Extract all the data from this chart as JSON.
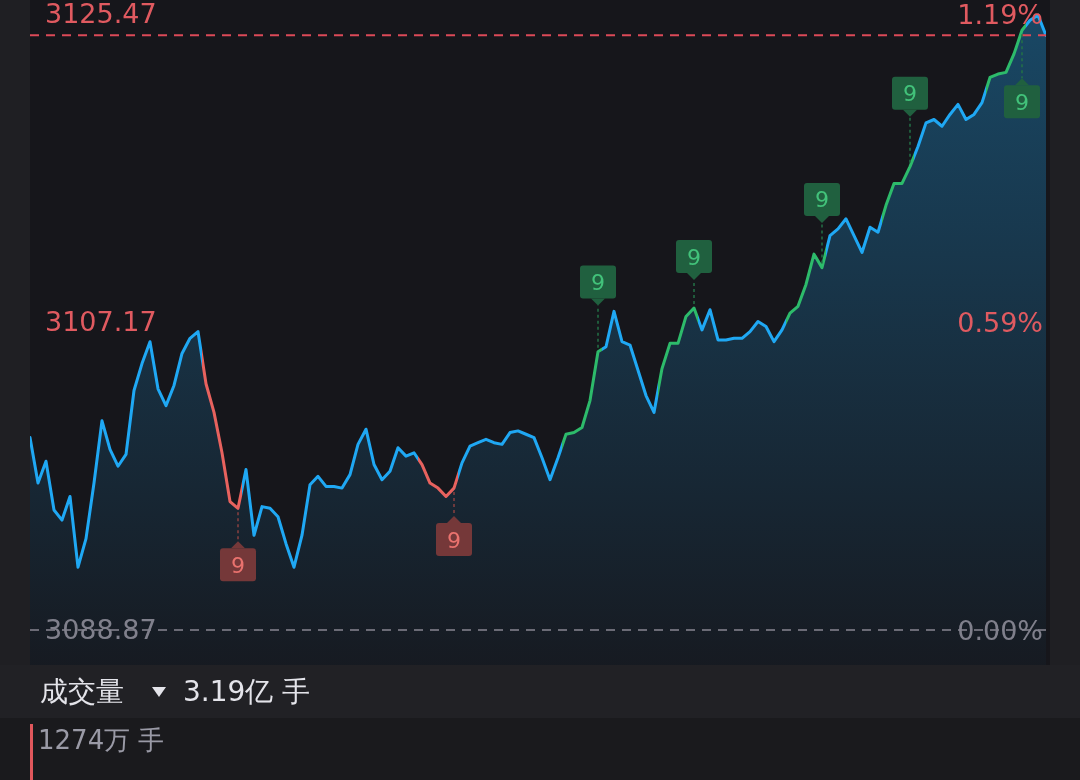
{
  "chart_data": {
    "type": "area",
    "categories": [
      null,
      null,
      null,
      null,
      null,
      null,
      null,
      null,
      null,
      null,
      null,
      null,
      null,
      null,
      null,
      null,
      null,
      null,
      null,
      null,
      null,
      null,
      null,
      null,
      null,
      null,
      null,
      null,
      null,
      null,
      null,
      null,
      null,
      null,
      null,
      null,
      null,
      null,
      null,
      null,
      null,
      null,
      null,
      null,
      null,
      null,
      null,
      null,
      null,
      null,
      null,
      null,
      null,
      null,
      null,
      null,
      null,
      null,
      null,
      null,
      null,
      null,
      null,
      null,
      null,
      null,
      null,
      null,
      null,
      null,
      null,
      null,
      null,
      null,
      null,
      null,
      null,
      null,
      null,
      null,
      null,
      null,
      null,
      null,
      null,
      null,
      null,
      null,
      null,
      null,
      null,
      null,
      null,
      null,
      null,
      null,
      null,
      null,
      null,
      null,
      null,
      null,
      null,
      null,
      null,
      null,
      null,
      null,
      null,
      null,
      null,
      null,
      null,
      null,
      null,
      null,
      null,
      null,
      null,
      null,
      null,
      null,
      null,
      null,
      null,
      null,
      null,
      null
    ],
    "series": [
      {
        "type": "area",
        "color": "#1fa8f4",
        "colors": [
          "#1fa8f4",
          "#1fa8f4",
          "#1fa8f4",
          "#1fa8f4",
          "#1fa8f4",
          "#1fa8f4",
          "#1fa8f4",
          "#1fa8f4",
          "#1fa8f4",
          "#1fa8f4",
          "#1fa8f4",
          "#1fa8f4",
          "#1fa8f4",
          "#1fa8f4",
          "#1fa8f4",
          "#1fa8f4",
          "#1fa8f4",
          "#1fa8f4",
          "#1fa8f4",
          "#1fa8f4",
          "#1fa8f4",
          "#1fa8f4",
          "#e8625e",
          "#e8625e",
          "#e8625e",
          "#e8625e",
          "#e8625e",
          "#1fa8f4",
          "#1fa8f4",
          "#1fa8f4",
          "#1fa8f4",
          "#1fa8f4",
          "#1fa8f4",
          "#1fa8f4",
          "#1fa8f4",
          "#1fa8f4",
          "#1fa8f4",
          "#1fa8f4",
          "#1fa8f4",
          "#1fa8f4",
          "#1fa8f4",
          "#1fa8f4",
          "#1fa8f4",
          "#1fa8f4",
          "#1fa8f4",
          "#1fa8f4",
          "#1fa8f4",
          "#1fa8f4",
          "#1fa8f4",
          "#e8625e",
          "#e8625e",
          "#e8625e",
          "#e8625e",
          "#e8625e",
          "#1fa8f4",
          "#1fa8f4",
          "#1fa8f4",
          "#1fa8f4",
          "#1fa8f4",
          "#1fa8f4",
          "#1fa8f4",
          "#1fa8f4",
          "#1fa8f4",
          "#1fa8f4",
          "#1fa8f4",
          "#1fa8f4",
          "#1fa8f4",
          "#2dbb6b",
          "#2dbb6b",
          "#2dbb6b",
          "#2dbb6b",
          "#2dbb6b",
          "#1fa8f4",
          "#1fa8f4",
          "#1fa8f4",
          "#1fa8f4",
          "#1fa8f4",
          "#1fa8f4",
          "#1fa8f4",
          "#2dbb6b",
          "#2dbb6b",
          "#2dbb6b",
          "#2dbb6b",
          "#2dbb6b",
          "#1fa8f4",
          "#1fa8f4",
          "#1fa8f4",
          "#1fa8f4",
          "#1fa8f4",
          "#1fa8f4",
          "#1fa8f4",
          "#1fa8f4",
          "#1fa8f4",
          "#1fa8f4",
          "#1fa8f4",
          "#2dbb6b",
          "#2dbb6b",
          "#2dbb6b",
          "#2dbb6b",
          "#2dbb6b",
          "#1fa8f4",
          "#1fa8f4",
          "#1fa8f4",
          "#1fa8f4",
          "#1fa8f4",
          "#1fa8f4",
          "#1fa8f4",
          "#2dbb6b",
          "#2dbb6b",
          "#2dbb6b",
          "#2dbb6b",
          "#1fa8f4",
          "#1fa8f4",
          "#1fa8f4",
          "#1fa8f4",
          "#1fa8f4",
          "#1fa8f4",
          "#1fa8f4",
          "#1fa8f4",
          "#1fa8f4",
          "#2dbb6b",
          "#2dbb6b",
          "#2dbb6b",
          "#2dbb6b",
          "#2dbb6b",
          "#1fa8f4",
          "#1fa8f4",
          "#1fa8f4"
        ],
        "values": [
          3100.3,
          3097.6,
          3098.9,
          3096.0,
          3095.4,
          3096.8,
          3092.6,
          3094.3,
          3097.6,
          3101.3,
          3099.6,
          3098.6,
          3099.3,
          3103.1,
          3104.7,
          3106.0,
          3103.2,
          3102.2,
          3103.4,
          3105.3,
          3106.2,
          3106.6,
          3103.5,
          3101.8,
          3099.4,
          3096.5,
          3096.1,
          3098.4,
          3094.5,
          3096.2,
          3096.1,
          3095.6,
          3094.0,
          3092.6,
          3094.5,
          3097.5,
          3098.0,
          3097.4,
          3097.4,
          3097.3,
          3098.1,
          3099.9,
          3100.8,
          3098.7,
          3097.8,
          3098.3,
          3099.7,
          3099.2,
          3099.4,
          3098.7,
          3097.6,
          3097.3,
          3096.8,
          3097.3,
          3098.8,
          3099.8,
          3100.0,
          3100.2,
          3100.0,
          3099.9,
          3100.6,
          3100.7,
          3100.5,
          3100.3,
          3099.1,
          3097.8,
          3099.1,
          3100.5,
          3100.6,
          3100.9,
          3102.5,
          3105.4,
          3105.7,
          3107.8,
          3106.0,
          3105.8,
          3104.3,
          3102.8,
          3101.8,
          3104.4,
          3105.9,
          3105.9,
          3107.5,
          3108.0,
          3106.7,
          3107.9,
          3106.1,
          3106.1,
          3106.2,
          3106.2,
          3106.6,
          3107.2,
          3106.9,
          3106.0,
          3106.7,
          3107.7,
          3108.1,
          3109.4,
          3111.2,
          3110.4,
          3112.3,
          3112.7,
          3113.3,
          3112.3,
          3111.3,
          3112.8,
          3112.5,
          3114.1,
          3115.4,
          3115.4,
          3116.4,
          3117.6,
          3119.0,
          3119.2,
          3118.8,
          3119.5,
          3120.1,
          3119.2,
          3119.5,
          3120.2,
          3121.7,
          3121.9,
          3122.0,
          3123.1,
          3124.5,
          3125.1,
          3125.4,
          3124.2
        ]
      }
    ],
    "ylim": [
      3086.79,
      3126.3
    ],
    "yticks": [
      3088.87,
      3107.17,
      3125.47
    ],
    "y2lim": [
      -0.067,
      1.212
    ],
    "y2ticks": [
      {
        "value": 0,
        "label": "0.00%"
      },
      {
        "value": 0.5925,
        "label": "0.59%"
      },
      {
        "value": 1.185,
        "label": "1.19%"
      }
    ],
    "ref_lines": [
      {
        "axis": "y",
        "value": 3124.2,
        "color": "#dc4a58",
        "line_style": "dashed"
      },
      {
        "axis": "y",
        "value": 3088.87,
        "color": "#6b6b76",
        "line_style": "dashed"
      }
    ],
    "annotations": [
      "9",
      "9",
      "9",
      "9",
      "9",
      "9",
      "9",
      "成交量",
      "3.19亿 手",
      "1274万 手"
    ]
  }
}
